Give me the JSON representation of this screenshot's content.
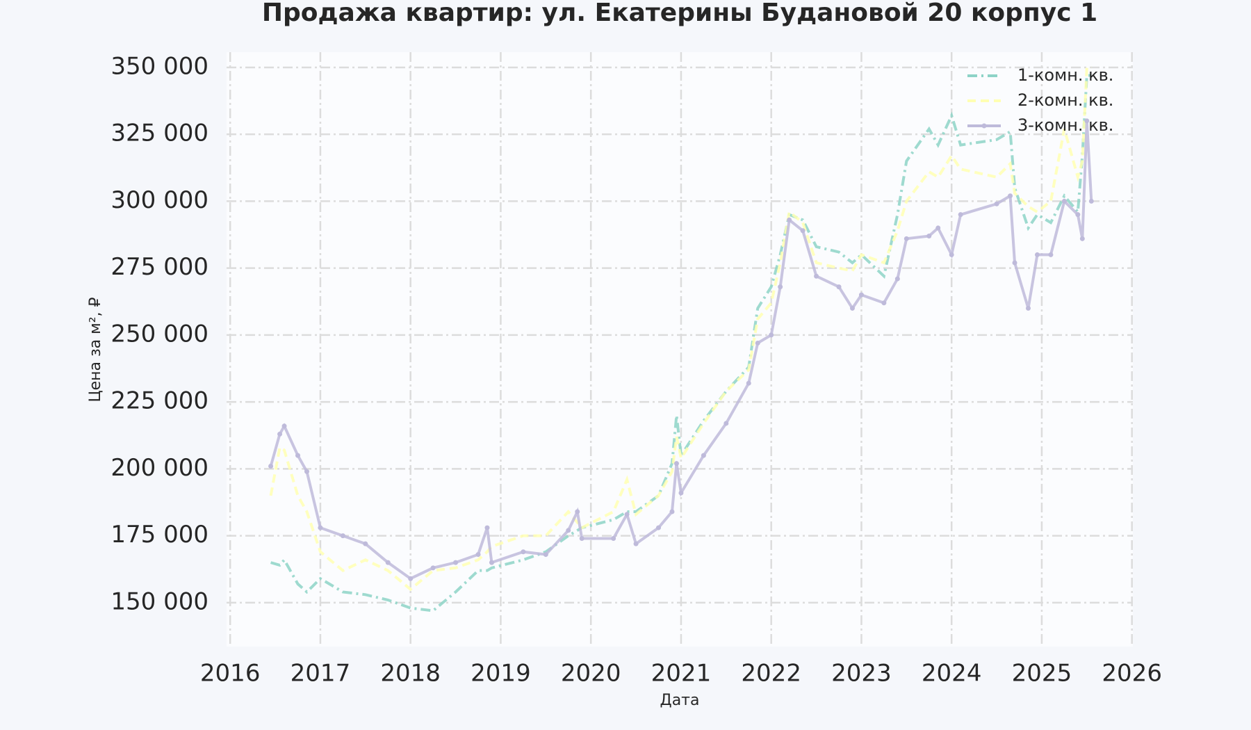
{
  "chart_data": {
    "type": "line",
    "title": "Продажа квартир: ул. Екатерины Будановой 20 корпус 1",
    "x_label": "Дата",
    "y_label": "Цена за м², ₽",
    "x": [
      2016.45,
      2016.55,
      2016.6,
      2016.75,
      2016.85,
      2017.0,
      2017.25,
      2017.5,
      2017.75,
      2018.0,
      2018.25,
      2018.5,
      2018.75,
      2018.85,
      2018.9,
      2019.25,
      2019.5,
      2019.75,
      2019.85,
      2019.9,
      2020.25,
      2020.4,
      2020.5,
      2020.75,
      2020.9,
      2020.95,
      2021.0,
      2021.25,
      2021.5,
      2021.75,
      2021.85,
      2022.0,
      2022.1,
      2022.2,
      2022.35,
      2022.5,
      2022.75,
      2022.9,
      2023.0,
      2023.25,
      2023.4,
      2023.5,
      2023.75,
      2023.85,
      2024.0,
      2024.1,
      2024.5,
      2024.65,
      2024.7,
      2024.85,
      2024.95,
      2025.1,
      2025.25,
      2025.4,
      2025.45,
      2025.5,
      2025.55
    ],
    "series": [
      {
        "name": "1-комн. кв.",
        "color": "#8dd3c7",
        "linestyle": "dashdot",
        "markers": false,
        "values": [
          165000,
          164000,
          166000,
          157000,
          154000,
          159000,
          154000,
          153000,
          151000,
          148000,
          147000,
          154000,
          162000,
          162000,
          163000,
          166000,
          169000,
          175000,
          177000,
          178000,
          181000,
          184000,
          184000,
          190000,
          202000,
          220000,
          205000,
          218000,
          229000,
          238000,
          260000,
          268000,
          280000,
          295000,
          293000,
          283000,
          281000,
          277000,
          280000,
          272000,
          295000,
          315000,
          327000,
          321000,
          332000,
          321000,
          323000,
          326000,
          305000,
          290000,
          295000,
          292000,
          302000,
          296000,
          317000,
          347000,
          347000
        ]
      },
      {
        "name": "2-комн. кв.",
        "color": "#ffffb3",
        "linestyle": "dashed",
        "markers": false,
        "values": [
          190000,
          208000,
          207000,
          190000,
          184000,
          169000,
          162000,
          166000,
          162000,
          155000,
          162000,
          163000,
          166000,
          169000,
          171000,
          175000,
          175000,
          184000,
          180000,
          178000,
          184000,
          196000,
          183000,
          190000,
          199000,
          212000,
          204000,
          217000,
          229000,
          237000,
          256000,
          262000,
          277000,
          296000,
          292000,
          277000,
          275000,
          274000,
          280000,
          277000,
          289000,
          300000,
          311000,
          309000,
          317000,
          312000,
          309000,
          314000,
          303000,
          298000,
          296000,
          300000,
          327000,
          309000,
          315000,
          350000,
          350000
        ]
      },
      {
        "name": "3-комн. кв.",
        "color": "#bebada",
        "linestyle": "solid",
        "markers": true,
        "values": [
          201000,
          213000,
          216000,
          205000,
          199000,
          178000,
          175000,
          172000,
          165000,
          159000,
          163000,
          165000,
          168000,
          178000,
          165000,
          169000,
          168000,
          177000,
          184000,
          174000,
          174000,
          183000,
          172000,
          178000,
          184000,
          202000,
          191000,
          205000,
          217000,
          232000,
          247000,
          250000,
          268000,
          293000,
          289000,
          272000,
          268000,
          260000,
          265000,
          262000,
          271000,
          286000,
          287000,
          290000,
          280000,
          295000,
          299000,
          302000,
          277000,
          260000,
          280000,
          280000,
          300000,
          295000,
          286000,
          330000,
          300000
        ]
      }
    ],
    "xlim": [
      2015.96,
      2026.01
    ],
    "xticks": [
      2016,
      2017,
      2018,
      2019,
      2020,
      2021,
      2022,
      2023,
      2024,
      2025,
      2026
    ],
    "ylim": [
      133600,
      355700
    ],
    "yticks": [
      {
        "value": 150000,
        "label": "150 000"
      },
      {
        "value": 175000,
        "label": "175 000"
      },
      {
        "value": 200000,
        "label": "200 000"
      },
      {
        "value": 225000,
        "label": "225 000"
      },
      {
        "value": 250000,
        "label": "250 000"
      },
      {
        "value": 275000,
        "label": "275 000"
      },
      {
        "value": 300000,
        "label": "300 000"
      },
      {
        "value": 325000,
        "label": "325 000"
      },
      {
        "value": 350000,
        "label": "350 000"
      }
    ],
    "grid": true,
    "legend": "upper right"
  }
}
